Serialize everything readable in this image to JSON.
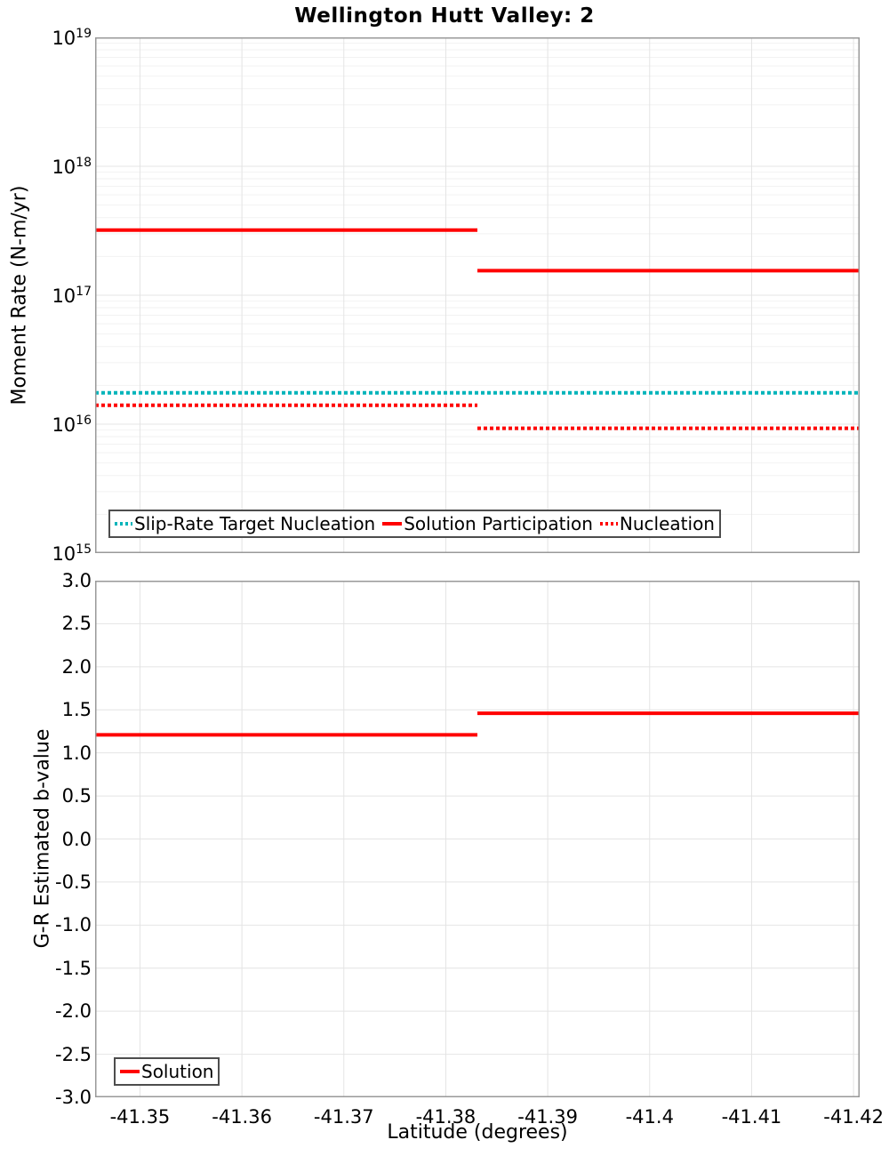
{
  "title": "Wellington Hutt Valley: 2",
  "colors": {
    "accent_red": "#ff0000",
    "accent_teal": "#00b4ba",
    "grid_minor": "#f2f2f2",
    "grid_major": "#e4e4e4",
    "axis_border": "#999999",
    "legend_border": "#4d4d4d"
  },
  "chart_data": [
    {
      "id": "moment-rate",
      "type": "line",
      "title": "Wellington Hutt Valley: 2",
      "ylabel": "Moment Rate (N-m/yr)",
      "yscale": "log",
      "ylim": [
        1000000000000000.0,
        1e+19
      ],
      "yticks": {
        "values": [
          1e+19,
          1e+18,
          1e+17,
          1e+16,
          1000000000000000.0
        ],
        "labels": [
          {
            "base": "10",
            "exp": "19"
          },
          {
            "base": "10",
            "exp": "18"
          },
          {
            "base": "10",
            "exp": "17"
          },
          {
            "base": "10",
            "exp": "16"
          },
          {
            "base": "10",
            "exp": "15"
          }
        ]
      },
      "xlim": [
        -41.3456,
        -41.4206
      ],
      "xticks": {
        "values": [
          -41.35,
          -41.36,
          -41.37,
          -41.38,
          -41.39,
          -41.4,
          -41.41,
          -41.42
        ]
      },
      "grid": true,
      "legend_position": "inside-bottom-left",
      "step_latitude": -41.3831,
      "series": [
        {
          "name": "Slip-Rate Target Nucleation",
          "color": "#00b4ba",
          "style": "dotted",
          "steps": [
            {
              "x": [
                -41.3456,
                -41.4206
              ],
              "y": 1.75e+16
            }
          ]
        },
        {
          "name": "Solution Participation",
          "color": "#ff0000",
          "style": "solid",
          "steps": [
            {
              "x": [
                -41.3456,
                -41.3831
              ],
              "y": 3.2e+17
            },
            {
              "x": [
                -41.3831,
                -41.4206
              ],
              "y": 1.55e+17
            }
          ]
        },
        {
          "name": "Nucleation",
          "color": "#ff0000",
          "style": "dotted",
          "steps": [
            {
              "x": [
                -41.3456,
                -41.3831
              ],
              "y": 1.4e+16
            },
            {
              "x": [
                -41.3831,
                -41.4206
              ],
              "y": 9300000000000000.0
            }
          ]
        }
      ]
    },
    {
      "id": "b-value",
      "type": "line",
      "ylabel": "G-R Estimated b-value",
      "xlabel": "Latitude (degrees)",
      "yscale": "linear",
      "ylim": [
        -3.0,
        3.0
      ],
      "yticks": {
        "values": [
          3.0,
          2.5,
          2.0,
          1.5,
          1.0,
          0.5,
          0.0,
          -0.5,
          -1.0,
          -1.5,
          -2.0,
          -2.5,
          -3.0
        ],
        "labels": [
          "3.0",
          "2.5",
          "2.0",
          "1.5",
          "1.0",
          "0.5",
          "0.0",
          "-0.5",
          "-1.0",
          "-1.5",
          "-2.0",
          "-2.5",
          "-3.0"
        ]
      },
      "xlim": [
        -41.3456,
        -41.4206
      ],
      "xticks": {
        "values": [
          -41.35,
          -41.36,
          -41.37,
          -41.38,
          -41.39,
          -41.4,
          -41.41,
          -41.42
        ],
        "labels": [
          "-41.35",
          "-41.36",
          "-41.37",
          "-41.38",
          "-41.39",
          "-41.4",
          "-41.41",
          "-41.42"
        ]
      },
      "grid": true,
      "legend_position": "inside-bottom-left",
      "step_latitude": -41.3831,
      "series": [
        {
          "name": "Solution",
          "color": "#ff0000",
          "style": "solid",
          "steps": [
            {
              "x": [
                -41.3456,
                -41.3831
              ],
              "y": 1.21
            },
            {
              "x": [
                -41.3831,
                -41.4206
              ],
              "y": 1.46
            }
          ]
        }
      ]
    }
  ]
}
